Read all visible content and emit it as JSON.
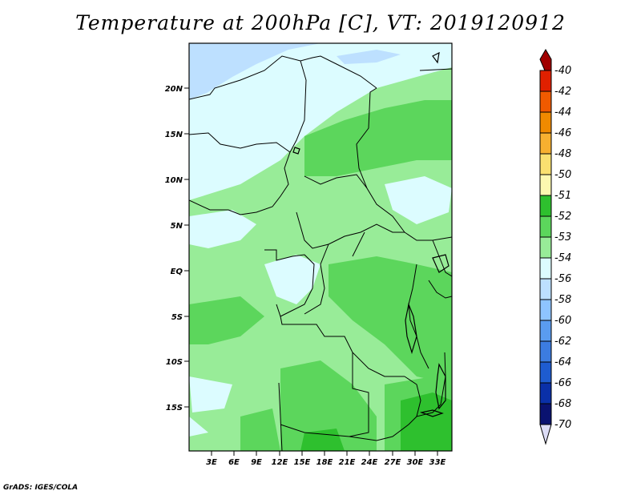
{
  "title": "Temperature at 200hPa [C], VT: 2019120912",
  "credit": "GrADS: IGES/COLA",
  "axes": {
    "lat_labels": [
      "20N",
      "15N",
      "10N",
      "5N",
      "EQ",
      "5S",
      "10S",
      "15S"
    ],
    "lon_labels": [
      "3E",
      "6E",
      "9E",
      "12E",
      "15E",
      "18E",
      "21E",
      "24E",
      "27E",
      "30E",
      "33E"
    ]
  },
  "colorbar": {
    "labels": [
      "-40",
      "-42",
      "-44",
      "-46",
      "-48",
      "-50",
      "-51",
      "-52",
      "-53",
      "-54",
      "-56",
      "-58",
      "-60",
      "-62",
      "-64",
      "-66",
      "-68",
      "-70"
    ],
    "colors": [
      "#a00000",
      "#e02000",
      "#f05a00",
      "#f08a00",
      "#f7b030",
      "#fae070",
      "#fdf8b0",
      "#2ec02e",
      "#5cd65c",
      "#98ec98",
      "#dcfcff",
      "#bde0ff",
      "#8ec4ff",
      "#5a9cf0",
      "#3c7ce0",
      "#1e5cd0",
      "#0a30a8",
      "#0a1270",
      "#dcdcf6"
    ]
  },
  "map": {
    "region": "Central Africa",
    "field": "Temperature at 200hPa",
    "units": "C",
    "valid_time": "2019120912"
  }
}
